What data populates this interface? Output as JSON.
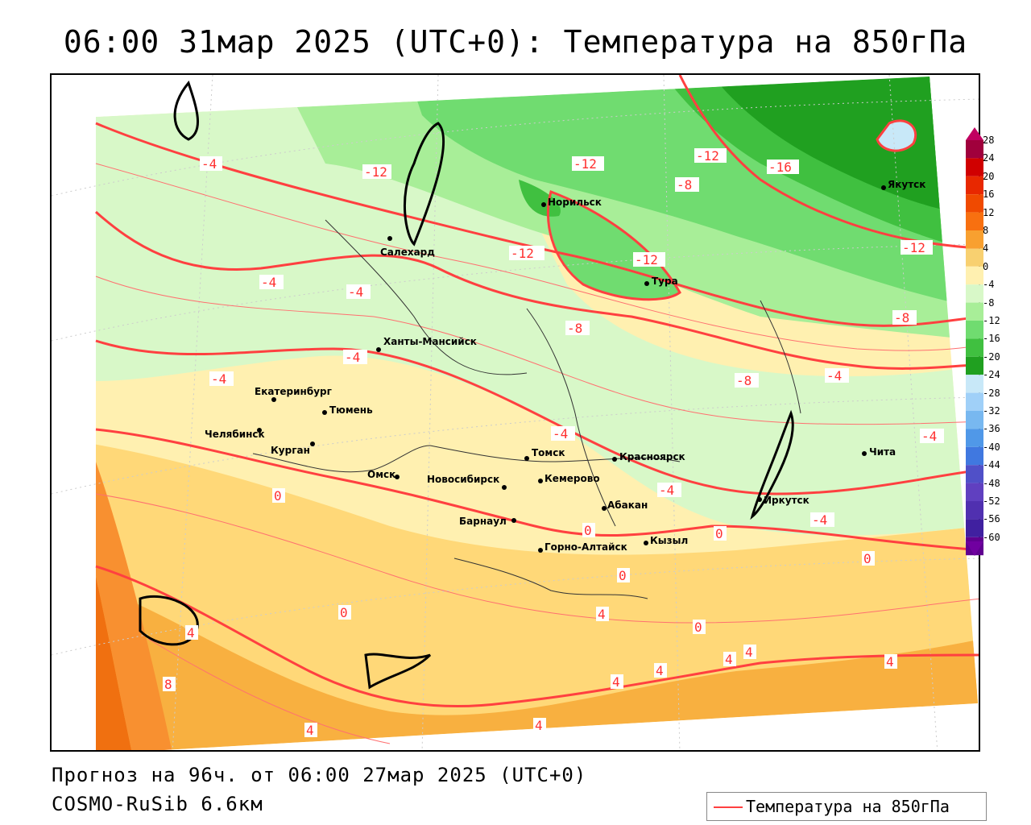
{
  "title": "06:00 31мар 2025 (UTC+0): Температура на 850гПа",
  "footer": {
    "forecast_line": "Прогноз на 96ч. от 06:00 27мар 2025 (UTC+0)",
    "model_line": "COSMO-RuSib 6.6км"
  },
  "legend": {
    "label": "Температура на 850гПа",
    "line_color": "#ff4040"
  },
  "colorbar": {
    "labels": [
      "28",
      "24",
      "20",
      "16",
      "12",
      "8",
      "4",
      "0",
      "-4",
      "-8",
      "-12",
      "-16",
      "-20",
      "-24",
      "-28",
      "-32",
      "-36",
      "-40",
      "-44",
      "-48",
      "-52",
      "-56",
      "-60"
    ],
    "colors": [
      "#a0003c",
      "#d00000",
      "#e82800",
      "#f04a00",
      "#f87010",
      "#f8a030",
      "#f8d070",
      "#fff0b0",
      "#d8f8c8",
      "#a8ee98",
      "#70dc70",
      "#40c040",
      "#20a020",
      "#c8e8f8",
      "#a0d0f8",
      "#78b8f0",
      "#5098e8",
      "#4078e0",
      "#5050c8",
      "#6040c0",
      "#5030b0",
      "#4020a0",
      "#600090"
    ]
  },
  "cities": [
    {
      "name": "Якутск"
    },
    {
      "name": "Норильск"
    },
    {
      "name": "Салехард"
    },
    {
      "name": "Тура"
    },
    {
      "name": "Ханты-Мансийск"
    },
    {
      "name": "Екатеринбург"
    },
    {
      "name": "Тюмень"
    },
    {
      "name": "Челябинск"
    },
    {
      "name": "Курган"
    },
    {
      "name": "Томск"
    },
    {
      "name": "Омск"
    },
    {
      "name": "Новосибирск"
    },
    {
      "name": "Кемерово"
    },
    {
      "name": "Красноярск"
    },
    {
      "name": "Барнаул"
    },
    {
      "name": "Абакан"
    },
    {
      "name": "Иркутск"
    },
    {
      "name": "Чита"
    },
    {
      "name": "Кызыл"
    },
    {
      "name": "Горно-Алтайск"
    }
  ],
  "isotherm_labels": [
    "-4",
    "-12",
    "-12",
    "-12",
    "-16",
    "-8",
    "-12",
    "-12",
    "-12",
    "-4",
    "-4",
    "-4",
    "-8",
    "-8",
    "-4",
    "-4",
    "-4",
    "-4",
    "-4",
    "-4",
    "-8",
    "0",
    "0",
    "0",
    "0",
    "0",
    "4",
    "4",
    "4",
    "4",
    "4",
    "4",
    "4",
    "8",
    "4",
    "4",
    "0",
    "0"
  ]
}
